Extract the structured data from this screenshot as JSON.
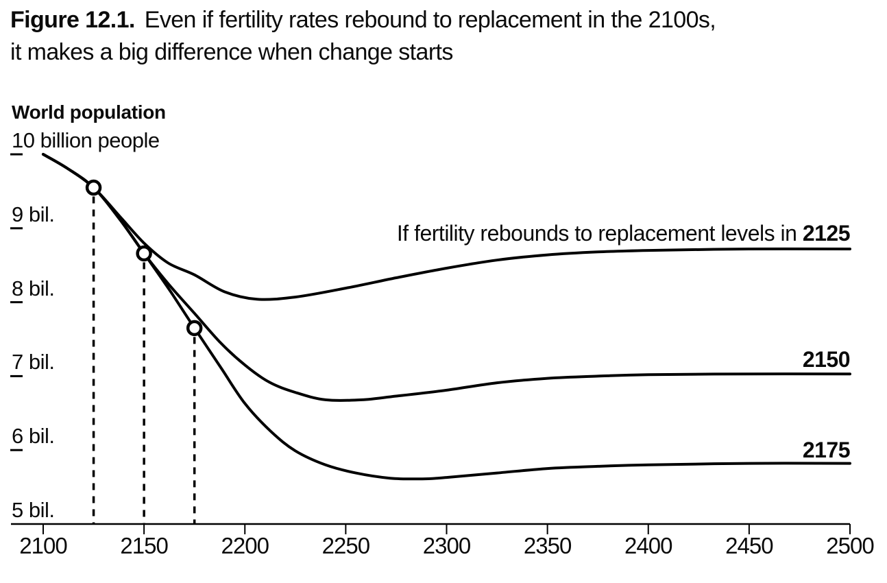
{
  "title": {
    "prefix": "Figure 12.1.",
    "line1": "Even if fertility rates rebound to replacement in the 2100s,",
    "line2": "it makes a big difference when change starts"
  },
  "colors": {
    "line": "#000000",
    "text": "#0b0b0b",
    "background": "#ffffff",
    "marker_fill": "#ffffff"
  },
  "chart_data": {
    "type": "line",
    "title": "Even if fertility rates rebound to replacement in the 2100s, it makes a big difference when change starts",
    "figure_number": "Figure 12.1.",
    "xlabel": "",
    "ylabel": "World population",
    "xlim": [
      2100,
      2500
    ],
    "ylim": [
      5,
      10
    ],
    "grid": false,
    "legend_position": "inline-right",
    "x_ticks": [
      2100,
      2150,
      2200,
      2250,
      2300,
      2350,
      2400,
      2450,
      2500
    ],
    "y_axis": {
      "title": "World population",
      "unit": "billion people",
      "ticks": [
        {
          "value": 10,
          "label": "10 billion people"
        },
        {
          "value": 9,
          "label": "9 bil."
        },
        {
          "value": 8,
          "label": "8 bil."
        },
        {
          "value": 7,
          "label": "7 bil."
        },
        {
          "value": 6,
          "label": "6 bil."
        },
        {
          "value": 5,
          "label": "5 bil."
        }
      ]
    },
    "divergence_markers": [
      {
        "year": 2125,
        "population_billions": 9.55
      },
      {
        "year": 2150,
        "population_billions": 8.66
      },
      {
        "year": 2175,
        "population_billions": 7.65
      }
    ],
    "series": [
      {
        "name": "Fertility rebounds to replacement levels in 2125",
        "label_text": "If fertility rebounds to replacement levels in ",
        "label_year": "2125",
        "points": [
          [
            2100,
            10.0
          ],
          [
            2112,
            9.81
          ],
          [
            2125,
            9.55
          ],
          [
            2138,
            9.16
          ],
          [
            2150,
            8.8
          ],
          [
            2162,
            8.53
          ],
          [
            2175,
            8.37
          ],
          [
            2190,
            8.14
          ],
          [
            2206,
            8.04
          ],
          [
            2225,
            8.07
          ],
          [
            2250,
            8.19
          ],
          [
            2275,
            8.33
          ],
          [
            2300,
            8.46
          ],
          [
            2325,
            8.57
          ],
          [
            2350,
            8.64
          ],
          [
            2375,
            8.68
          ],
          [
            2400,
            8.7
          ],
          [
            2450,
            8.72
          ],
          [
            2500,
            8.72
          ]
        ]
      },
      {
        "name": "Fertility rebounds to replacement levels in 2150",
        "label_text": "",
        "label_year": "2150",
        "points": [
          [
            2100,
            10.0
          ],
          [
            2112,
            9.81
          ],
          [
            2125,
            9.55
          ],
          [
            2138,
            9.12
          ],
          [
            2150,
            8.66
          ],
          [
            2162,
            8.25
          ],
          [
            2175,
            7.85
          ],
          [
            2188,
            7.45
          ],
          [
            2200,
            7.15
          ],
          [
            2212,
            6.92
          ],
          [
            2225,
            6.78
          ],
          [
            2240,
            6.68
          ],
          [
            2258,
            6.68
          ],
          [
            2275,
            6.73
          ],
          [
            2300,
            6.81
          ],
          [
            2325,
            6.91
          ],
          [
            2350,
            6.97
          ],
          [
            2375,
            7.0
          ],
          [
            2400,
            7.02
          ],
          [
            2450,
            7.03
          ],
          [
            2500,
            7.03
          ]
        ]
      },
      {
        "name": "Fertility rebounds to replacement levels in 2175",
        "label_text": "",
        "label_year": "2175",
        "points": [
          [
            2100,
            10.0
          ],
          [
            2112,
            9.81
          ],
          [
            2125,
            9.55
          ],
          [
            2138,
            9.12
          ],
          [
            2150,
            8.66
          ],
          [
            2163,
            8.15
          ],
          [
            2175,
            7.65
          ],
          [
            2188,
            7.12
          ],
          [
            2200,
            6.63
          ],
          [
            2213,
            6.25
          ],
          [
            2225,
            5.99
          ],
          [
            2240,
            5.8
          ],
          [
            2255,
            5.69
          ],
          [
            2272,
            5.62
          ],
          [
            2288,
            5.61
          ],
          [
            2300,
            5.63
          ],
          [
            2325,
            5.69
          ],
          [
            2350,
            5.75
          ],
          [
            2375,
            5.78
          ],
          [
            2400,
            5.8
          ],
          [
            2450,
            5.82
          ],
          [
            2500,
            5.82
          ]
        ]
      }
    ]
  }
}
